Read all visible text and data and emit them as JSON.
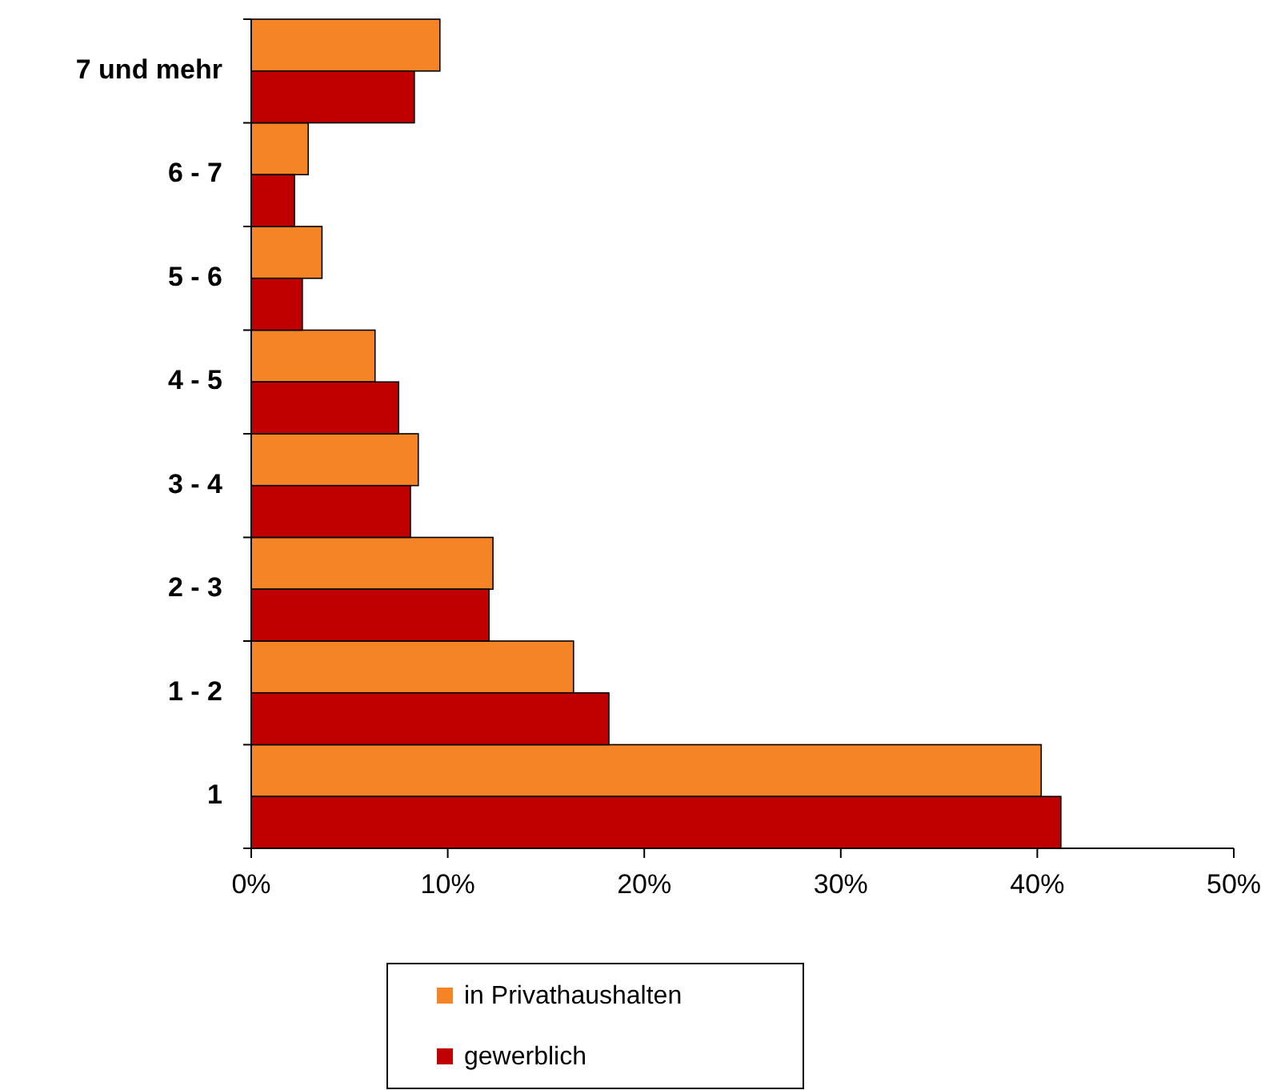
{
  "chart_data": {
    "type": "bar",
    "orientation": "horizontal",
    "categories": [
      "7 und mehr",
      "6 - 7",
      "5 - 6",
      "4 - 5",
      "3 - 4",
      "2 - 3",
      "1 - 2",
      "1"
    ],
    "series": [
      {
        "name": "in Privathaushalten",
        "color": "#f58426",
        "values": [
          9.6,
          2.9,
          3.6,
          6.3,
          8.5,
          12.3,
          16.4,
          40.2
        ]
      },
      {
        "name": "gewerblich",
        "color": "#c00000",
        "values": [
          8.3,
          2.2,
          2.6,
          7.5,
          8.1,
          12.1,
          18.2,
          41.2
        ]
      }
    ],
    "xlim": [
      0,
      50
    ],
    "xticks": [
      {
        "value": 0,
        "label": "0%"
      },
      {
        "value": 10,
        "label": "10%"
      },
      {
        "value": 20,
        "label": "20%"
      },
      {
        "value": 30,
        "label": "30%"
      },
      {
        "value": 40,
        "label": "40%"
      },
      {
        "value": 50,
        "label": "50%"
      }
    ],
    "grid": false,
    "legend": "bottom"
  }
}
